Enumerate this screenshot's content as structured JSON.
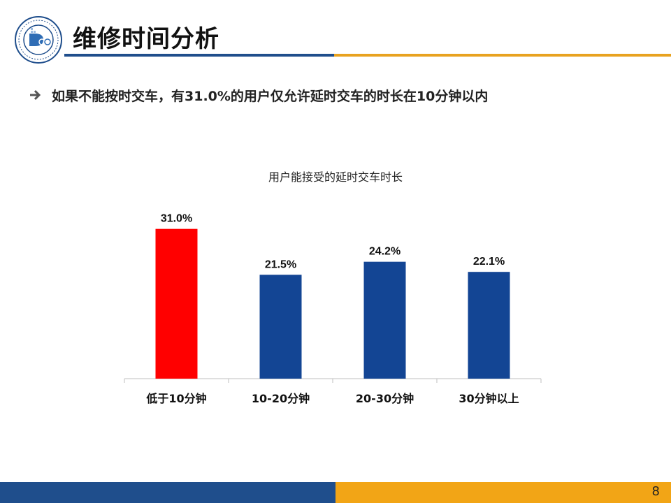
{
  "header": {
    "title": "维修时间分析"
  },
  "bullet": {
    "text": "如果不能按时交车，有31.0%的用户仅允许延时交车的时长在10分钟以内"
  },
  "colors": {
    "highlight_bar": "#ff0000",
    "default_bar": "#134594",
    "accent_blue": "#1f4e8c",
    "accent_orange": "#f2a516"
  },
  "chart_data": {
    "type": "bar",
    "title": "用户能接受的延时交车时长",
    "categories": [
      "低于10分钟",
      "10-20分钟",
      "20-30分钟",
      "30分钟以上"
    ],
    "values": [
      31.0,
      21.5,
      24.2,
      22.1
    ],
    "data_labels": [
      "31.0%",
      "21.5%",
      "24.2%",
      "22.1%"
    ],
    "highlight_index": 0,
    "ylim": [
      0,
      35
    ],
    "grid": false,
    "legend": "none",
    "xlabel": "",
    "ylabel": ""
  },
  "footer": {
    "page_number": "8"
  }
}
